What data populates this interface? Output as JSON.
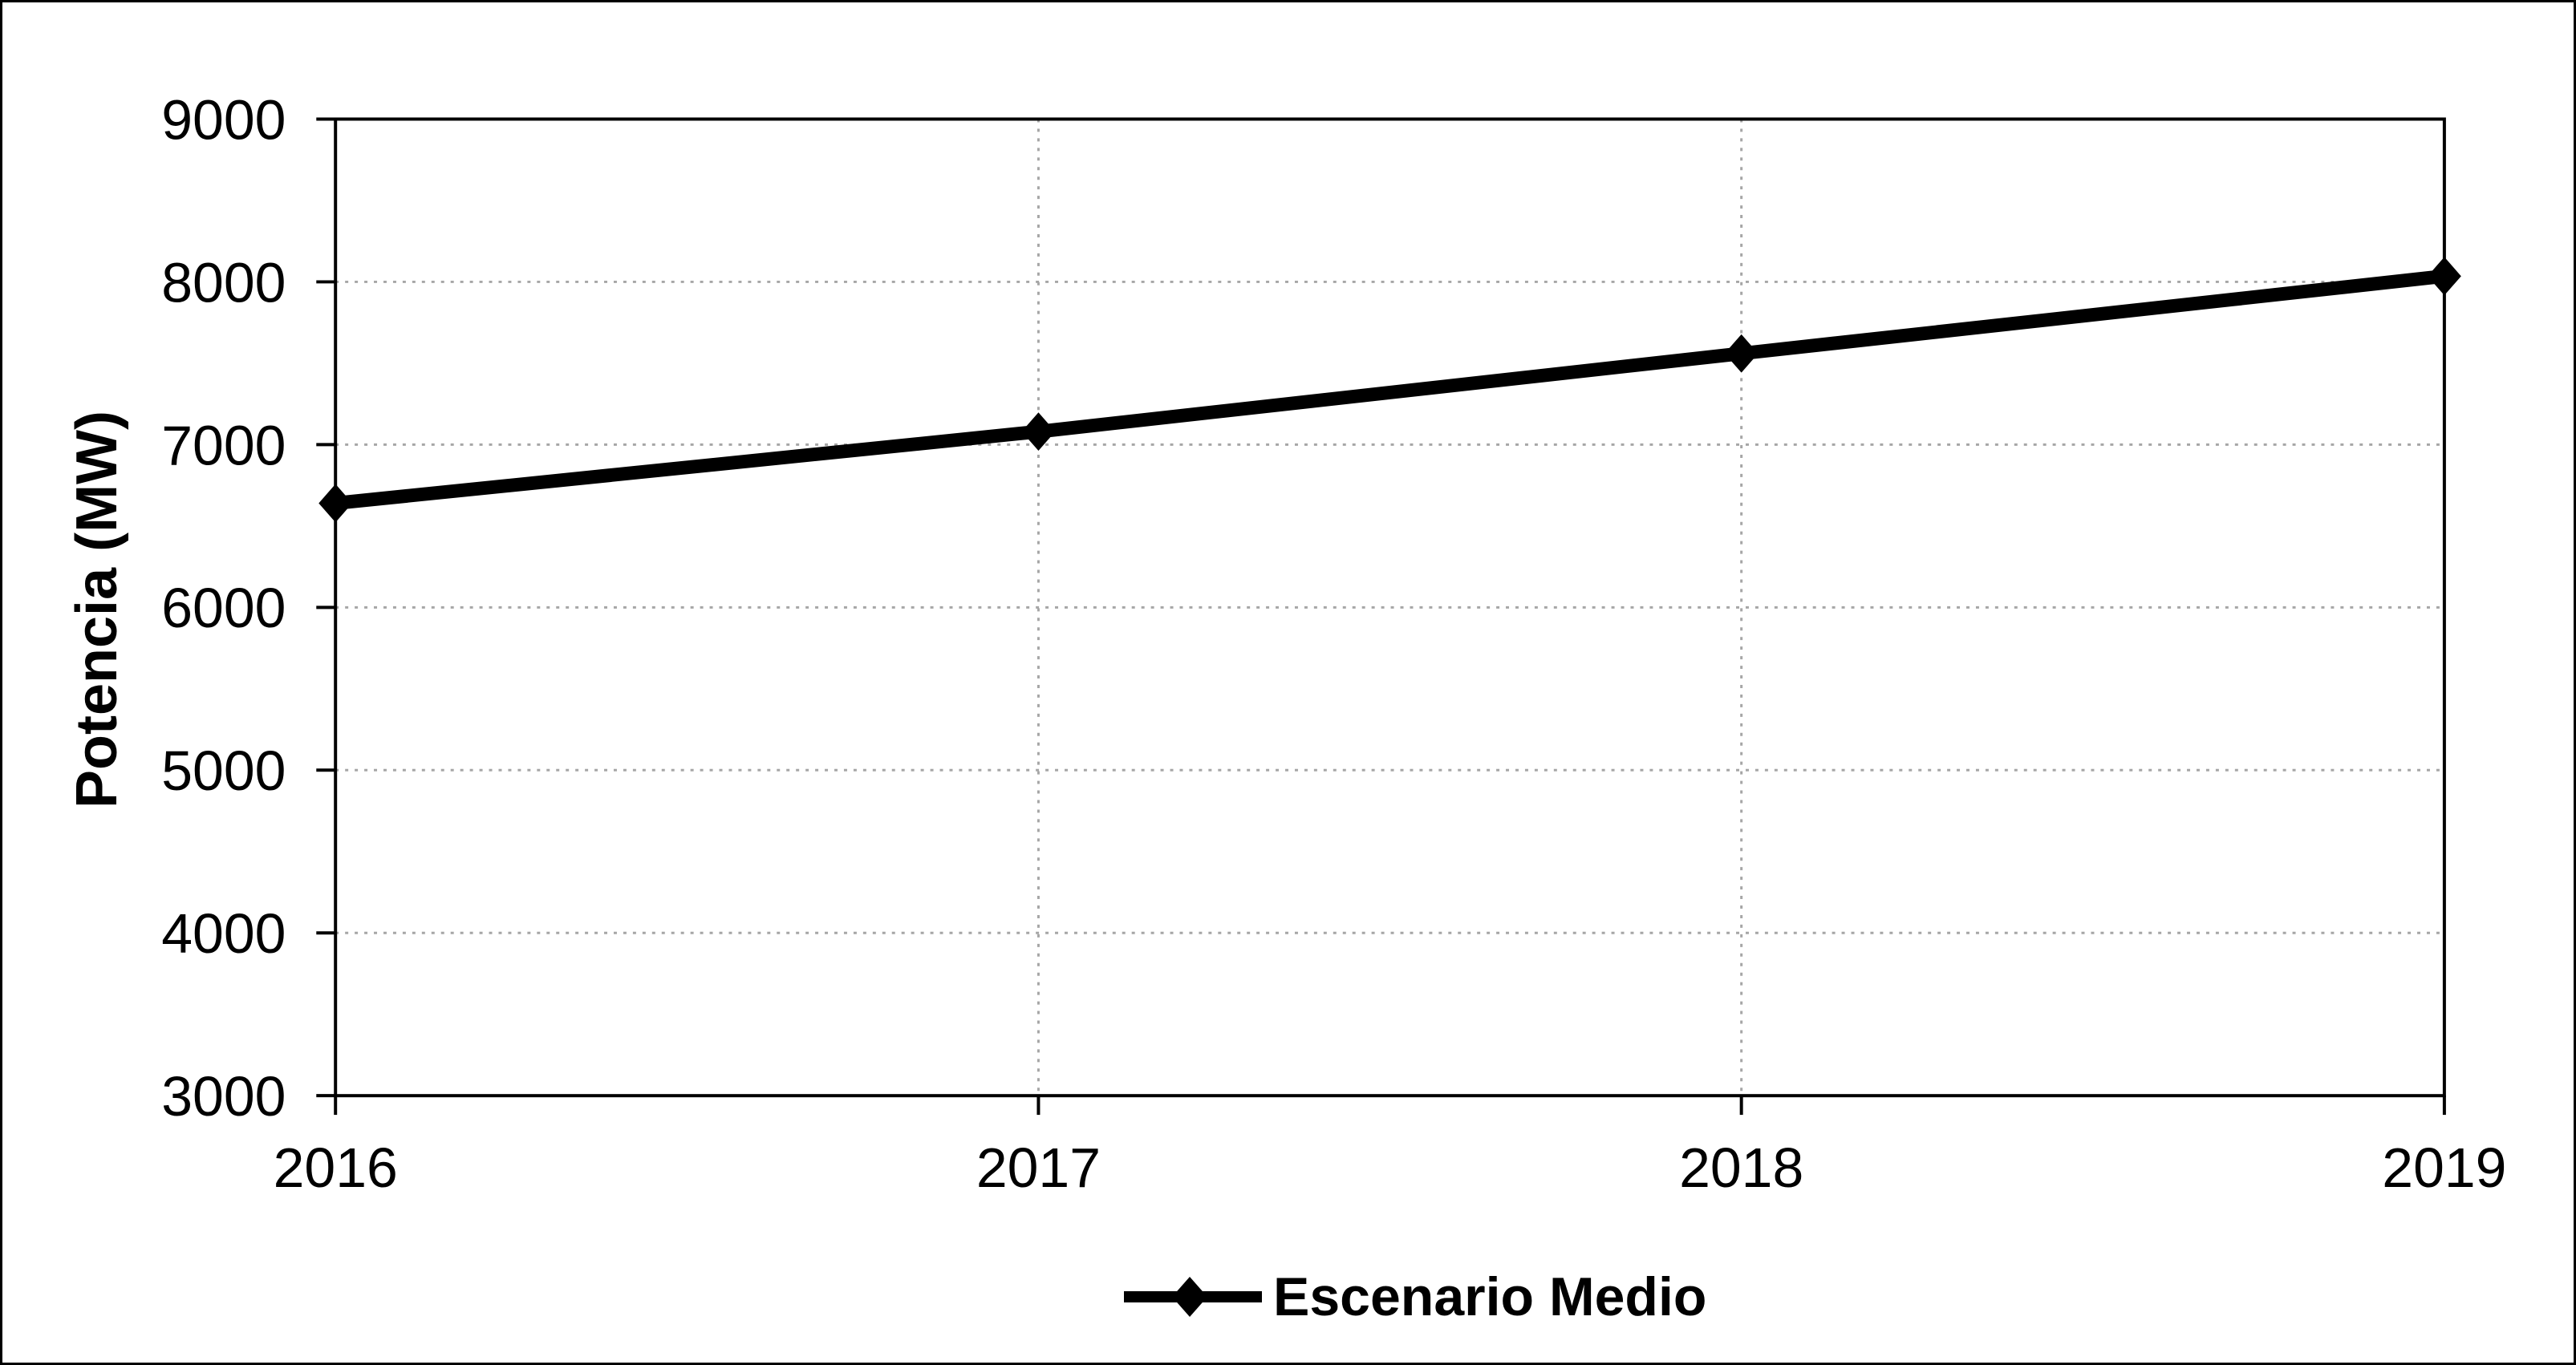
{
  "chart_data": {
    "type": "line",
    "title": "",
    "xlabel": "",
    "ylabel": "Potencia (MW)",
    "categories": [
      "2016",
      "2017",
      "2018",
      "2019"
    ],
    "series": [
      {
        "name": "Escenario Medio",
        "marker": "diamond",
        "values": [
          6640,
          7080,
          7560,
          8035
        ]
      }
    ],
    "ylim": [
      3000,
      9000
    ],
    "ytick_step": 1000,
    "ytick_labels": [
      "3000",
      "4000",
      "5000",
      "6000",
      "7000",
      "8000",
      "9000"
    ],
    "grid": "dotted horizontal gridlines at each 1000 MW, dotted vertical gridlines at interior years",
    "legend_position": "bottom-center"
  },
  "colors": {
    "series": "#000000",
    "frame": "#000000",
    "gridline": "#a6a6a6",
    "background": "#ffffff",
    "border": "#000000"
  }
}
